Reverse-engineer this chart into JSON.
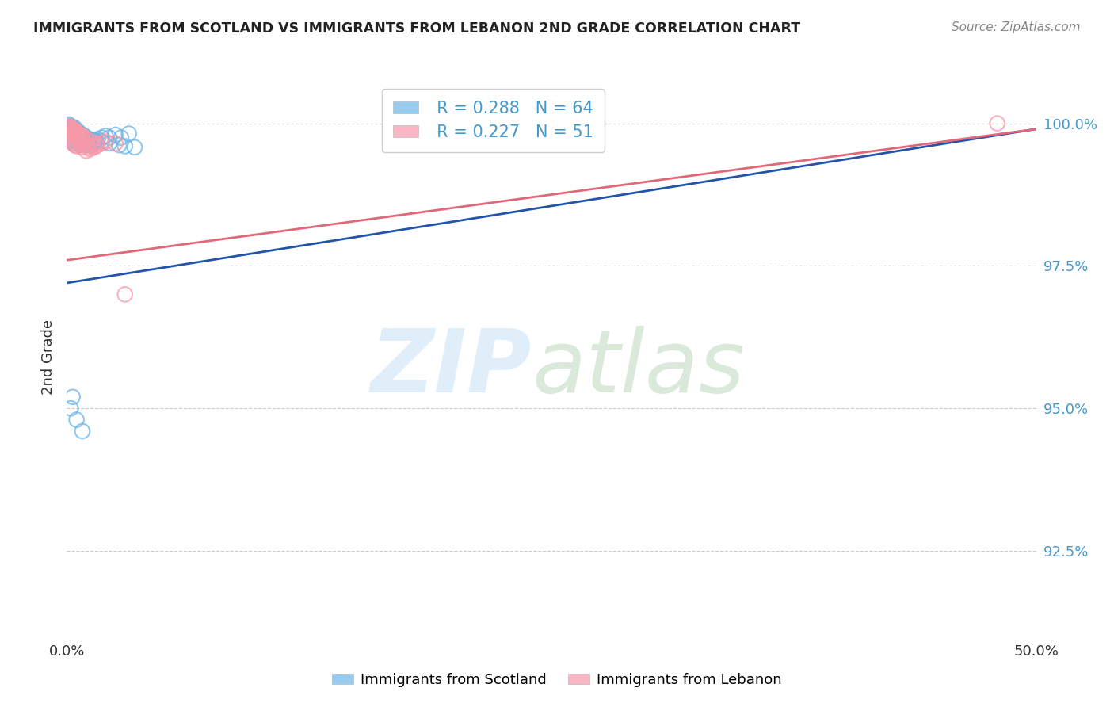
{
  "title": "IMMIGRANTS FROM SCOTLAND VS IMMIGRANTS FROM LEBANON 2ND GRADE CORRELATION CHART",
  "source": "Source: ZipAtlas.com",
  "ylabel": "2nd Grade",
  "ytick_labels": [
    "92.5%",
    "95.0%",
    "97.5%",
    "100.0%"
  ],
  "ytick_values": [
    0.925,
    0.95,
    0.975,
    1.0
  ],
  "xlim": [
    0.0,
    0.5
  ],
  "ylim": [
    0.91,
    1.008
  ],
  "legend_scotland_R": "0.288",
  "legend_scotland_N": "64",
  "legend_lebanon_R": "0.227",
  "legend_lebanon_N": "51",
  "scotland_color": "#6eb5e8",
  "lebanon_color": "#f898a8",
  "scotland_line_color": "#2255aa",
  "lebanon_line_color": "#e06878",
  "background_color": "#ffffff",
  "scotland_x": [
    0.001,
    0.001,
    0.002,
    0.002,
    0.002,
    0.003,
    0.003,
    0.003,
    0.003,
    0.004,
    0.004,
    0.004,
    0.004,
    0.005,
    0.005,
    0.005,
    0.006,
    0.006,
    0.006,
    0.007,
    0.007,
    0.007,
    0.008,
    0.008,
    0.009,
    0.009,
    0.01,
    0.01,
    0.011,
    0.012,
    0.013,
    0.014,
    0.015,
    0.016,
    0.018,
    0.02,
    0.022,
    0.025,
    0.028,
    0.032,
    0.001,
    0.002,
    0.002,
    0.003,
    0.003,
    0.004,
    0.004,
    0.005,
    0.006,
    0.007,
    0.008,
    0.009,
    0.01,
    0.012,
    0.015,
    0.018,
    0.022,
    0.027,
    0.03,
    0.035,
    0.002,
    0.003,
    0.005,
    0.008
  ],
  "scotland_y": [
    0.9995,
    0.9988,
    0.9992,
    0.9985,
    0.9978,
    0.999,
    0.9983,
    0.9975,
    0.997,
    0.9988,
    0.998,
    0.9972,
    0.9965,
    0.9985,
    0.9978,
    0.9968,
    0.9982,
    0.9975,
    0.9965,
    0.998,
    0.9972,
    0.9962,
    0.9978,
    0.9968,
    0.9975,
    0.9965,
    0.9972,
    0.9962,
    0.9968,
    0.9965,
    0.9962,
    0.997,
    0.9968,
    0.9972,
    0.9975,
    0.9978,
    0.9975,
    0.998,
    0.9975,
    0.9982,
    0.9998,
    0.9995,
    0.999,
    0.9993,
    0.9988,
    0.9992,
    0.9985,
    0.9988,
    0.9985,
    0.9982,
    0.998,
    0.9978,
    0.9975,
    0.9972,
    0.997,
    0.9968,
    0.9965,
    0.9962,
    0.996,
    0.9958,
    0.95,
    0.952,
    0.948,
    0.946
  ],
  "lebanon_x": [
    0.001,
    0.001,
    0.002,
    0.002,
    0.002,
    0.003,
    0.003,
    0.003,
    0.004,
    0.004,
    0.004,
    0.005,
    0.005,
    0.005,
    0.006,
    0.006,
    0.007,
    0.007,
    0.008,
    0.008,
    0.009,
    0.01,
    0.01,
    0.011,
    0.012,
    0.013,
    0.014,
    0.015,
    0.016,
    0.018,
    0.002,
    0.003,
    0.004,
    0.005,
    0.006,
    0.007,
    0.008,
    0.01,
    0.012,
    0.015,
    0.02,
    0.025,
    0.03,
    0.001,
    0.002,
    0.003,
    0.004,
    0.005,
    0.006,
    0.008,
    0.48
  ],
  "lebanon_y": [
    0.999,
    0.998,
    0.9988,
    0.9978,
    0.9968,
    0.9985,
    0.9975,
    0.9965,
    0.9982,
    0.9972,
    0.9962,
    0.998,
    0.997,
    0.996,
    0.9975,
    0.9965,
    0.9972,
    0.9962,
    0.9968,
    0.9958,
    0.9965,
    0.9962,
    0.9952,
    0.9958,
    0.9955,
    0.996,
    0.9958,
    0.996,
    0.9962,
    0.9965,
    0.9992,
    0.9988,
    0.9985,
    0.9982,
    0.998,
    0.9978,
    0.9976,
    0.9972,
    0.9968,
    0.9965,
    0.9968,
    0.9965,
    0.97,
    0.9995,
    0.9993,
    0.999,
    0.9988,
    0.9985,
    0.9982,
    0.9978,
    1.0
  ],
  "sc_line_x0": 0.0,
  "sc_line_x1": 0.5,
  "sc_line_y0": 0.972,
  "sc_line_y1": 0.999,
  "lb_line_x0": 0.0,
  "lb_line_x1": 0.5,
  "lb_line_y0": 0.976,
  "lb_line_y1": 0.999
}
